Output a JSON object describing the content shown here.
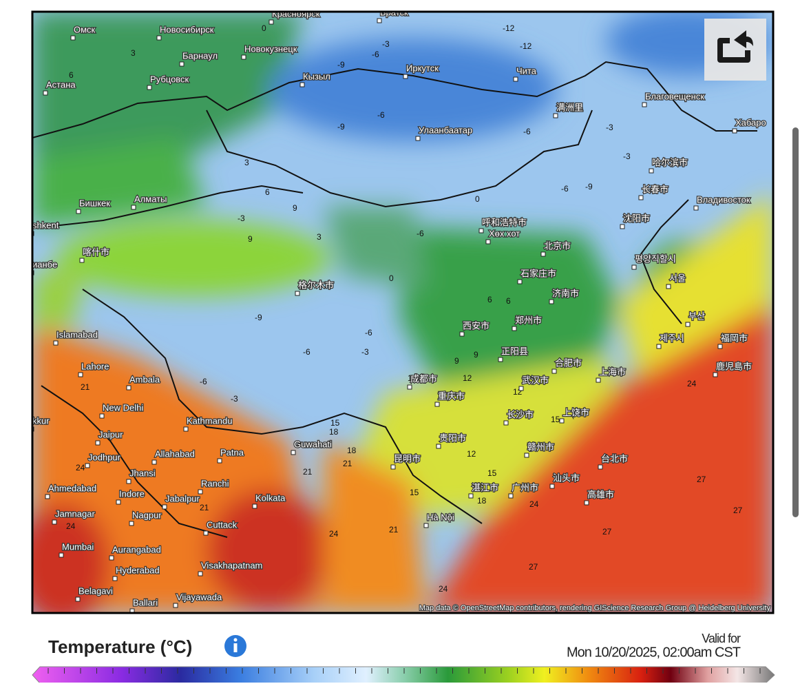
{
  "map": {
    "labels": [
      "Омск",
      "Новосибирск",
      "Красноярск",
      "Братск",
      "Новокузнецк",
      "Барнаул",
      "Рубцовск",
      "Астана",
      "Кызыл",
      "Иркутск",
      "Чита",
      "满洲里",
      "Благовещенск",
      "Хабаро",
      "Улаанбаатар",
      "哈尔滨市",
      "长春市",
      "Владивосток",
      "Бишкек",
      "Алматы",
      "shkent",
      "呼和浩特市",
      "Хөх хот",
      "沈阳市",
      "北京市",
      "평양직할시",
      "喀什市",
      "ианбе",
      "石家庄市",
      "서울",
      "格尔木市",
      "济南市",
      "西安市",
      "郑州市",
      "부산",
      "福岡市",
      "제주시",
      "Islamabad",
      "正阳县",
      "合肥市",
      "上海市",
      "鹿児島市",
      "Lahore",
      "成都市",
      "武汉市",
      "Ambala",
      "重庆市",
      "New Delhi",
      "长沙市",
      "上饶市",
      "kkur",
      "Kathmandu",
      "贵阳市",
      "Jaipur",
      "Guwahati",
      "赣州市",
      "Jodhpur",
      "Allahabad",
      "Patna",
      "昆明市",
      "台北市",
      "Jhansi",
      "湛江市",
      "广州市",
      "汕头市",
      "Ranchi",
      "Ahmedabad",
      "Indore",
      "Jabalpur",
      "Kolkata",
      "高雄市",
      "Jamnagar",
      "Nagpur",
      "Hà Nội",
      "Cuttack",
      "Mumbai",
      "Aurangabad",
      "Hyderabad",
      "Visakhapatnam",
      "Belagavi",
      "Vijayawada",
      "Ballari"
    ],
    "contours": [
      -12,
      -12,
      -9,
      -6,
      -3,
      0,
      3,
      6,
      -6,
      -9,
      -6,
      -3,
      0,
      -6,
      -9,
      -3,
      3,
      6,
      9,
      3,
      9,
      -3,
      -9,
      -6,
      -3,
      -6,
      -6,
      -3,
      0,
      -6,
      6,
      9,
      12,
      12,
      15,
      12,
      15,
      18,
      15,
      18,
      21,
      24,
      24,
      21,
      24,
      27,
      27,
      27,
      27,
      24,
      18,
      21,
      15,
      12,
      9,
      6,
      21,
      24,
      21,
      24
    ],
    "attribution": "Map data © OpenStreetMap contributors, rendering GIScience Research Group @ Heidelberg University"
  },
  "legend": {
    "title": "Temperature (°C)",
    "valid_label": "Valid for",
    "valid_time": "Mon 10/20/2025, 02:00am CST"
  }
}
